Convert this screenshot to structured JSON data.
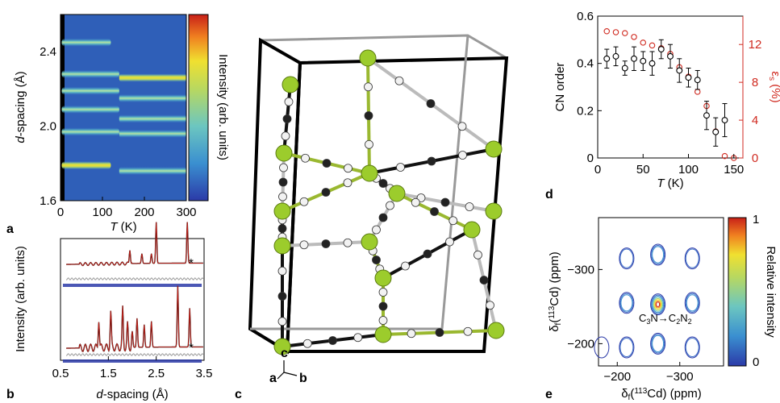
{
  "panel_labels": {
    "a": "a",
    "b": "b",
    "c": "c",
    "d": "d",
    "e": "e"
  },
  "chart_data": [
    {
      "id": "a",
      "type": "heatmap",
      "xlabel": "T (K)",
      "ylabel": "d-spacing (Å)",
      "colorbar_label": "Intensity (arb. units)",
      "xlim": [
        0,
        300
      ],
      "ylim": [
        1.6,
        2.6
      ],
      "xticks": [
        "0",
        "100",
        "200",
        "300"
      ],
      "yticks": [
        "1.6",
        "2.0",
        "2.4"
      ],
      "colormap": [
        "#2b3aa8",
        "#3a8fd0",
        "#6cc6c0",
        "#b8d860",
        "#f0e030",
        "#f08020",
        "#c82018"
      ],
      "bands": [
        {
          "d_low_T": 2.45,
          "d_high_T": null,
          "T_end": 120,
          "intensity": 0.45
        },
        {
          "d_low_T": 2.28,
          "d_high_T": 2.26,
          "T_end": 300,
          "intensity": 0.55
        },
        {
          "d_low_T": 2.19,
          "d_high_T": 2.15,
          "T_end": 300,
          "intensity": 0.4
        },
        {
          "d_low_T": 2.09,
          "d_high_T": 2.04,
          "T_end": 300,
          "intensity": 0.35
        },
        {
          "d_low_T": 1.97,
          "d_high_T": 1.96,
          "T_end": 300,
          "intensity": 0.35
        },
        {
          "d_low_T": 1.79,
          "d_high_T": 1.79,
          "T_end": 120,
          "intensity": 0.7
        },
        {
          "d_low_T": null,
          "d_high_T": 1.76,
          "T_end": 300,
          "intensity": 0.25
        }
      ]
    },
    {
      "id": "b",
      "type": "line",
      "xlabel": "d-spacing (Å)",
      "ylabel": "Intensity (arb. units)",
      "xlim": [
        0.5,
        3.5
      ],
      "xticks": [
        "0.5",
        "1.5",
        "2.5",
        "3.5"
      ],
      "annotations": [
        "*",
        "*"
      ],
      "series": [
        {
          "pattern": "upper",
          "peaks_d": [
            1.95,
            2.2,
            2.4,
            2.5,
            3.15
          ],
          "peak_heights": [
            0.3,
            0.2,
            0.2,
            0.85,
            0.85
          ]
        },
        {
          "pattern": "lower",
          "peaks_d": [
            1.3,
            1.55,
            1.8,
            1.9,
            2.0,
            2.1,
            2.25,
            2.4,
            2.95,
            3.2
          ],
          "peak_heights": [
            0.45,
            0.55,
            0.6,
            0.35,
            0.25,
            0.45,
            0.35,
            0.4,
            0.95,
            0.6
          ]
        }
      ]
    },
    {
      "id": "d",
      "type": "scatter",
      "xlabel": "T (K)",
      "ylabel": "CN order",
      "y2label": "εs (%)",
      "xlim": [
        0,
        160
      ],
      "ylim": [
        0,
        0.6
      ],
      "y2lim": [
        0,
        15
      ],
      "xticks": [
        "0",
        "50",
        "100",
        "150"
      ],
      "yticks": [
        "0",
        "0.2",
        "0.4",
        "0.6"
      ],
      "y2ticks": [
        "0",
        "4",
        "8",
        "12"
      ],
      "series": [
        {
          "name": "CN order",
          "x": [
            10,
            20,
            30,
            40,
            50,
            60,
            70,
            80,
            90,
            100,
            110,
            120,
            130,
            140
          ],
          "y": [
            0.42,
            0.43,
            0.38,
            0.42,
            0.41,
            0.4,
            0.46,
            0.43,
            0.37,
            0.34,
            0.33,
            0.18,
            0.11,
            0.16
          ],
          "err": [
            0.04,
            0.04,
            0.03,
            0.05,
            0.04,
            0.05,
            0.04,
            0.05,
            0.05,
            0.04,
            0.04,
            0.06,
            0.06,
            0.07
          ]
        },
        {
          "name": "εs",
          "x": [
            10,
            20,
            30,
            40,
            50,
            60,
            70,
            80,
            90,
            100,
            110,
            120,
            130,
            140,
            150
          ],
          "y": [
            13.4,
            13.3,
            13.2,
            12.8,
            12.2,
            11.9,
            11.6,
            11.0,
            9.6,
            8.6,
            7.0,
            5.5,
            2.8,
            0.2,
            0.0
          ]
        }
      ]
    },
    {
      "id": "e",
      "type": "heatmap",
      "xlabel": "δf(113Cd) (ppm)",
      "ylabel": "δf(113Cd) (ppm)",
      "colorbar_label": "Relative intensity",
      "colorbar_ticks": [
        "0",
        "1"
      ],
      "xlim": [
        -170,
        -370
      ],
      "ylim": [
        -170,
        -370
      ],
      "xticks": [
        "-200",
        "-300"
      ],
      "yticks": [
        "-200",
        "-300"
      ],
      "annotation": "C3N→C2N2",
      "peaks": [
        {
          "x": -215,
          "y": -315,
          "level": 0.3
        },
        {
          "x": -265,
          "y": -320,
          "level": 0.35
        },
        {
          "x": -320,
          "y": -315,
          "level": 0.3
        },
        {
          "x": -215,
          "y": -255,
          "level": 0.4
        },
        {
          "x": -265,
          "y": -253,
          "level": 1.0
        },
        {
          "x": -320,
          "y": -255,
          "level": 0.4
        },
        {
          "x": -215,
          "y": -195,
          "level": 0.3
        },
        {
          "x": -265,
          "y": -200,
          "level": 0.35
        },
        {
          "x": -320,
          "y": -195,
          "level": 0.3
        },
        {
          "x": -175,
          "y": -195,
          "level": 0.1
        }
      ]
    }
  ]
}
